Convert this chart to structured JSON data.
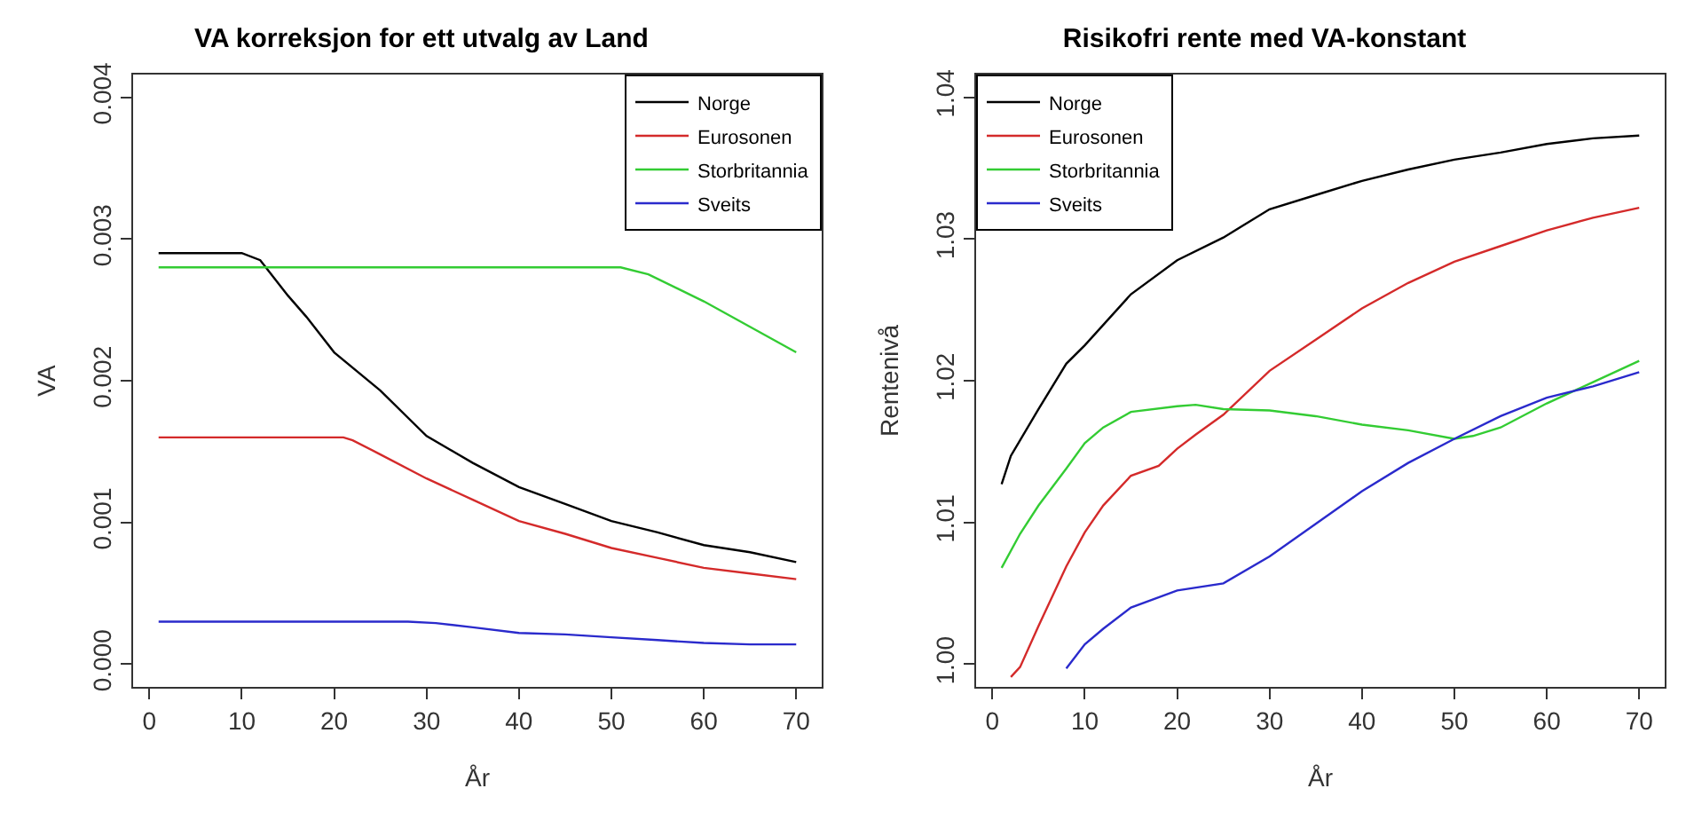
{
  "chart_data": [
    {
      "type": "line",
      "title": "VA korreksjon for ett utvalg av Land",
      "xlabel": "År",
      "ylabel": "VA",
      "legend": "top right",
      "grid": false,
      "line_style": "solid",
      "marker": "none",
      "xlim": [
        -1.76,
        72.76
      ],
      "xticks": [
        0,
        10,
        20,
        30,
        40,
        50,
        60,
        70
      ],
      "ylim": [
        -0.00016,
        0.00416
      ],
      "yticks": [
        {
          "value": 0,
          "label": "0.000"
        },
        {
          "value": 0.001,
          "label": "0.001"
        },
        {
          "value": 0.002,
          "label": "0.002"
        },
        {
          "value": 0.003,
          "label": "0.003"
        },
        {
          "value": 0.004,
          "label": "0.004"
        }
      ],
      "series": [
        {
          "name": "Norge",
          "color": "#000000",
          "x": [
            1,
            10,
            12,
            15,
            17,
            20,
            25,
            30,
            35,
            40,
            45,
            50,
            55,
            60,
            65,
            70
          ],
          "values": [
            0.0029,
            0.0029,
            0.00285,
            0.0026,
            0.00245,
            0.0022,
            0.00193,
            0.00161,
            0.00142,
            0.00125,
            0.00113,
            0.00101,
            0.00093,
            0.00084,
            0.00079,
            0.00072
          ]
        },
        {
          "name": "Eurosonen",
          "color": "#d42a2a",
          "x": [
            1,
            21,
            22,
            25,
            30,
            35,
            40,
            45,
            50,
            55,
            60,
            65,
            70
          ],
          "values": [
            0.0016,
            0.0016,
            0.00158,
            0.00148,
            0.00131,
            0.00116,
            0.00101,
            0.00092,
            0.00082,
            0.00075,
            0.00068,
            0.00064,
            0.0006
          ]
        },
        {
          "name": "Storbritannia",
          "color": "#33cc33",
          "x": [
            1,
            51,
            54,
            60,
            65,
            70
          ],
          "values": [
            0.0028,
            0.0028,
            0.00275,
            0.00256,
            0.00238,
            0.0022
          ]
        },
        {
          "name": "Sveits",
          "color": "#2a2acc",
          "x": [
            1,
            28,
            31,
            35,
            40,
            45,
            50,
            55,
            60,
            65,
            70
          ],
          "values": [
            0.0003,
            0.0003,
            0.00029,
            0.00026,
            0.00022,
            0.00021,
            0.00019,
            0.00017,
            0.00015,
            0.00014,
            0.00014
          ]
        }
      ]
    },
    {
      "type": "line",
      "title": "Risikofri rente med VA-konstant",
      "xlabel": "År",
      "ylabel": "Rentenivå",
      "legend": "top left",
      "grid": false,
      "line_style": "solid",
      "marker": "none",
      "xlim": [
        -1.76,
        72.76
      ],
      "xticks": [
        0,
        10,
        20,
        30,
        40,
        50,
        60,
        70
      ],
      "ylim": [
        0.9984,
        1.0416
      ],
      "yticks": [
        {
          "value": 1.0,
          "label": "1.00"
        },
        {
          "value": 1.01,
          "label": "1.01"
        },
        {
          "value": 1.02,
          "label": "1.02"
        },
        {
          "value": 1.03,
          "label": "1.03"
        },
        {
          "value": 1.04,
          "label": "1.04"
        }
      ],
      "series": [
        {
          "name": "Norge",
          "color": "#000000",
          "x": [
            1,
            2,
            5,
            8,
            10,
            15,
            20,
            25,
            30,
            35,
            40,
            45,
            50,
            55,
            60,
            65,
            70
          ],
          "values": [
            1.0127,
            1.0147,
            1.018,
            1.0212,
            1.0225,
            1.0261,
            1.0285,
            1.0301,
            1.0321,
            1.0331,
            1.0341,
            1.0349,
            1.0356,
            1.0361,
            1.0367,
            1.0371,
            1.0373
          ]
        },
        {
          "name": "Eurosonen",
          "color": "#d42a2a",
          "x": [
            2,
            3,
            5,
            8,
            10,
            12,
            15,
            18,
            20,
            22,
            25,
            30,
            35,
            40,
            45,
            50,
            55,
            60,
            65,
            70
          ],
          "values": [
            0.9991,
            0.9998,
            1.0027,
            1.0069,
            1.0093,
            1.0112,
            1.0133,
            1.014,
            1.0152,
            1.0162,
            1.0176,
            1.0207,
            1.0229,
            1.0251,
            1.0269,
            1.0284,
            1.0295,
            1.0306,
            1.0315,
            1.0322
          ]
        },
        {
          "name": "Storbritannia",
          "color": "#33cc33",
          "x": [
            1,
            3,
            5,
            8,
            10,
            12,
            15,
            20,
            22,
            25,
            30,
            35,
            40,
            45,
            50,
            52,
            55,
            60,
            65,
            70
          ],
          "values": [
            1.0068,
            1.0092,
            1.0112,
            1.0138,
            1.0156,
            1.0167,
            1.0178,
            1.0182,
            1.0183,
            1.018,
            1.0179,
            1.0175,
            1.0169,
            1.0165,
            1.0159,
            1.0161,
            1.0167,
            1.0184,
            1.0199,
            1.0214
          ]
        },
        {
          "name": "Sveits",
          "color": "#2a2acc",
          "x": [
            8,
            10,
            12,
            15,
            20,
            25,
            30,
            35,
            40,
            45,
            50,
            55,
            60,
            65,
            70
          ],
          "values": [
            0.9997,
            1.0014,
            1.0025,
            1.004,
            1.0052,
            1.0057,
            1.0076,
            1.0099,
            1.0122,
            1.0142,
            1.0159,
            1.0175,
            1.0188,
            1.0196,
            1.0206
          ]
        }
      ]
    }
  ]
}
